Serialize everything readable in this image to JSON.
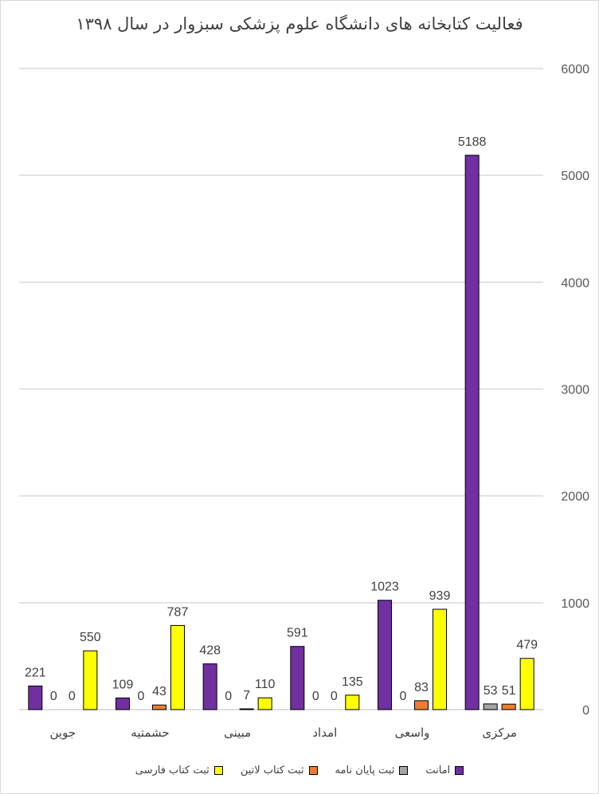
{
  "chart_data": {
    "type": "bar",
    "title": "فعالیت کتابخانه های دانشگاه علوم پزشکی سبزوار در سال ۱۳۹۸",
    "categories": [
      "جوین",
      "حشمتیه",
      "مبینی",
      "امداد",
      "واسعی",
      "مرکزی"
    ],
    "series": [
      {
        "name": "امانت",
        "color": "#7030a0",
        "values": [
          221,
          109,
          428,
          591,
          1023,
          5188
        ]
      },
      {
        "name": "ثبت پایان نامه",
        "color": "#a6a6a6",
        "values": [
          0,
          0,
          0,
          0,
          0,
          53
        ]
      },
      {
        "name": "ثبت کتاب لاتین",
        "color": "#ed7d31",
        "values": [
          0,
          43,
          7,
          0,
          83,
          51
        ]
      },
      {
        "name": "ثبت کتاب فارسی",
        "color": "#ffff00",
        "values": [
          550,
          787,
          110,
          135,
          939,
          479
        ]
      }
    ],
    "ylim": [
      0,
      6000
    ],
    "yticks": [
      0,
      1000,
      2000,
      3000,
      4000,
      5000,
      6000
    ],
    "y_axis_side": "right",
    "grid": true,
    "legend_position": "bottom"
  }
}
